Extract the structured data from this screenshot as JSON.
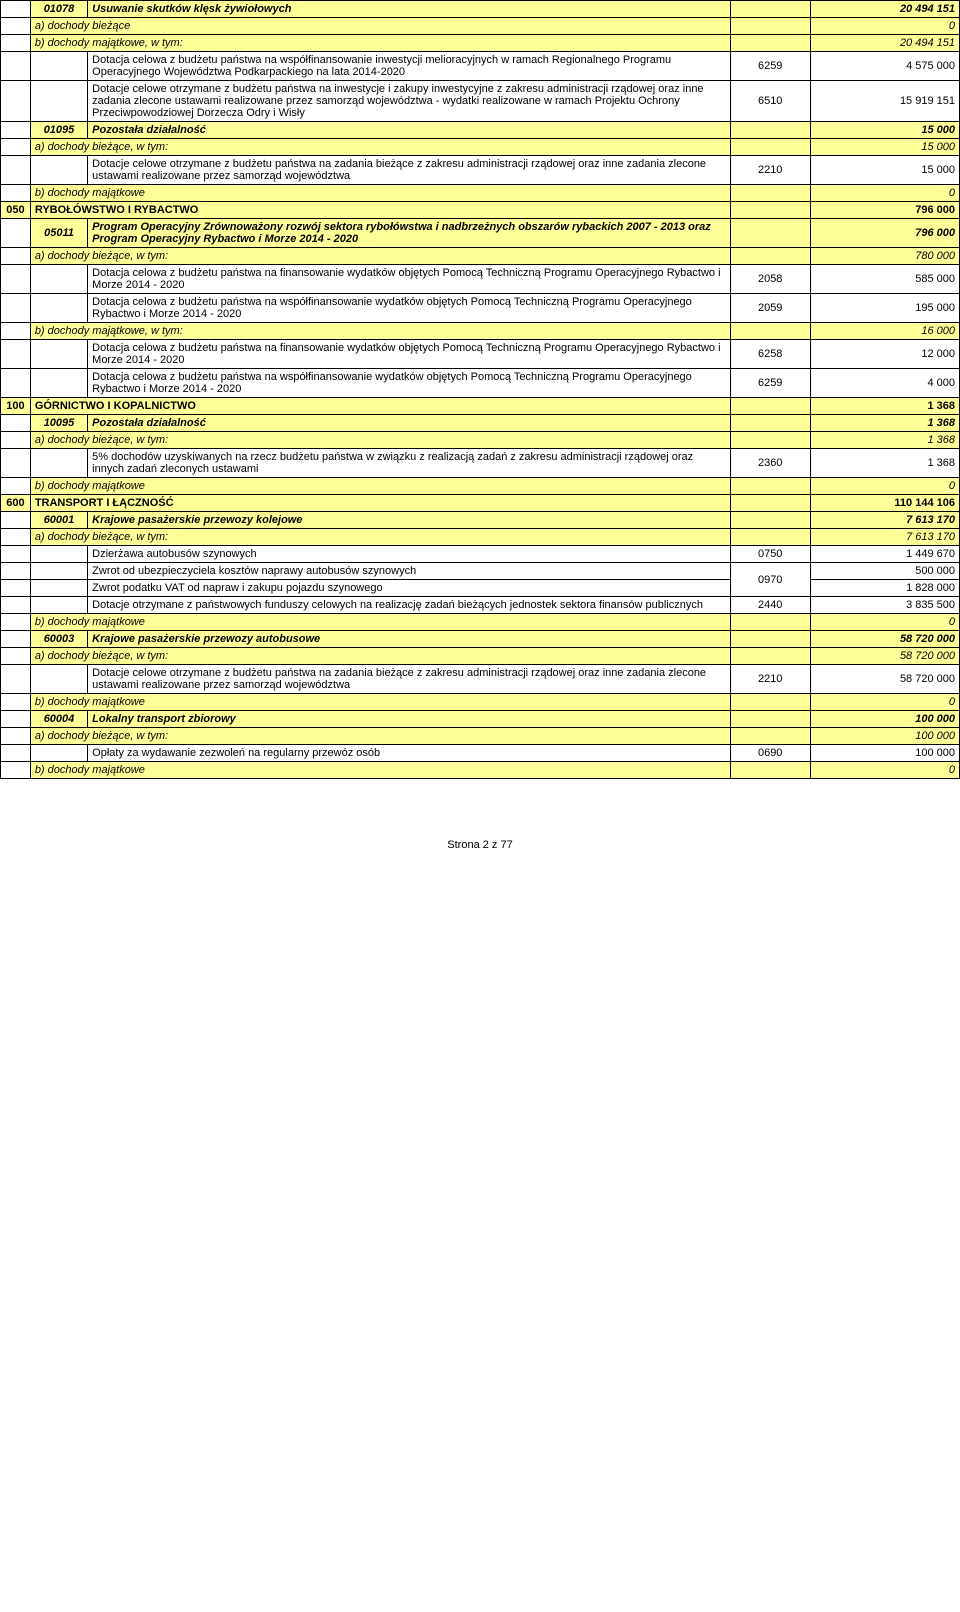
{
  "rows": [
    {
      "type": "head",
      "code": "01078",
      "desc": "Usuwanie skutków klęsk żywiołowych",
      "amt": "20 494 151"
    },
    {
      "type": "sub",
      "desc": "a) dochody bieżące",
      "amt": "0"
    },
    {
      "type": "sub",
      "desc": "b) dochody majątkowe, w tym:",
      "amt": "20 494 151"
    },
    {
      "type": "item",
      "desc": "Dotacja celowa z budżetu państwa na współfinansowanie inwestycji melioracyjnych w ramach Regionalnego Programu Operacyjnego Województwa Podkarpackiego na lata 2014-2020",
      "num": "6259",
      "amt": "4 575 000"
    },
    {
      "type": "item",
      "desc": "Dotacje celowe otrzymane z budżetu państwa na inwestycje i zakupy inwestycyjne z zakresu administracji rządowej oraz inne zadania zlecone ustawami realizowane przez samorząd województwa - wydatki realizowane w ramach Projektu Ochrony Przeciwpowodziowej Dorzecza Odry i Wisły",
      "num": "6510",
      "amt": "15 919 151"
    },
    {
      "type": "head",
      "code": "01095",
      "desc": "Pozostała działalność",
      "amt": "15 000"
    },
    {
      "type": "sub",
      "desc": "a) dochody bieżące, w tym:",
      "amt": "15 000"
    },
    {
      "type": "item",
      "desc": "Dotacje celowe otrzymane z budżetu państwa na zadania bieżące z zakresu administracji rządowej oraz inne zadania zlecone ustawami realizowane przez samorząd województwa",
      "num": "2210",
      "amt": "15 000"
    },
    {
      "type": "sub",
      "desc": "b) dochody majątkowe",
      "amt": "0"
    },
    {
      "type": "section",
      "code": "050",
      "desc": "RYBOŁÓWSTWO I RYBACTWO",
      "amt": "796 000"
    },
    {
      "type": "head",
      "code": "05011",
      "desc": "Program Operacyjny Zrównoważony rozwój sektora rybołówstwa i nadbrzeżnych obszarów rybackich 2007 - 2013 oraz Program Operacyjny Rybactwo i Morze 2014 - 2020",
      "amt": "796 000"
    },
    {
      "type": "sub",
      "desc": "a) dochody bieżące, w tym:",
      "amt": "780 000"
    },
    {
      "type": "item",
      "desc": "Dotacja celowa z budżetu państwa na finansowanie wydatków objętych Pomocą Techniczną Programu Operacyjnego Rybactwo i Morze 2014 - 2020",
      "num": "2058",
      "amt": "585 000"
    },
    {
      "type": "item",
      "desc": "Dotacja celowa z budżetu państwa na współfinansowanie wydatków objętych Pomocą Techniczną Programu Operacyjnego Rybactwo i Morze 2014 - 2020",
      "num": "2059",
      "amt": "195 000"
    },
    {
      "type": "sub",
      "desc": "b) dochody majątkowe, w tym:",
      "amt": "16 000"
    },
    {
      "type": "item",
      "desc": "Dotacja celowa z budżetu państwa na finansowanie wydatków objętych Pomocą Techniczną Programu Operacyjnego Rybactwo i Morze 2014 - 2020",
      "num": "6258",
      "amt": "12 000"
    },
    {
      "type": "item",
      "desc": "Dotacja celowa z budżetu państwa na współfinansowanie wydatków objętych Pomocą Techniczną Programu Operacyjnego Rybactwo i Morze 2014 - 2020",
      "num": "6259",
      "amt": "4 000"
    },
    {
      "type": "section",
      "code": "100",
      "desc": "GÓRNICTWO I KOPALNICTWO",
      "amt": "1 368"
    },
    {
      "type": "head",
      "code": "10095",
      "desc": "Pozostała działalność",
      "amt": "1 368"
    },
    {
      "type": "sub",
      "desc": "a) dochody bieżące, w tym:",
      "amt": "1 368"
    },
    {
      "type": "item",
      "desc": "5% dochodów uzyskiwanych na rzecz budżetu państwa w związku z realizacją zadań z zakresu administracji rządowej oraz innych zadań zleconych ustawami",
      "num": "2360",
      "amt": "1 368"
    },
    {
      "type": "sub",
      "desc": "b) dochody majątkowe",
      "amt": "0"
    },
    {
      "type": "section",
      "code": "600",
      "desc": "TRANSPORT I ŁĄCZNOŚĆ",
      "amt": "110 144 106"
    },
    {
      "type": "head",
      "code": "60001",
      "desc": "Krajowe pasażerskie przewozy kolejowe",
      "amt": "7 613 170"
    },
    {
      "type": "sub",
      "desc": "a) dochody bieżące, w tym:",
      "amt": "7 613 170"
    },
    {
      "type": "item",
      "desc": "Dzierżawa autobusów szynowych",
      "num": "0750",
      "amt": "1 449 670"
    },
    {
      "type": "item2",
      "desc": "Zwrot od ubezpieczyciela kosztów naprawy autobusów szynowych",
      "num": "0970",
      "amt": "500 000",
      "rowspan": 2
    },
    {
      "type": "item2b",
      "desc": "Zwrot podatku VAT od napraw i zakupu pojazdu szynowego",
      "amt": "1 828 000"
    },
    {
      "type": "item",
      "desc": "Dotacje otrzymane z państwowych funduszy celowych na realizację zadań bieżących jednostek sektora finansów publicznych",
      "num": "2440",
      "amt": "3 835 500"
    },
    {
      "type": "sub",
      "desc": "b) dochody majątkowe",
      "amt": "0"
    },
    {
      "type": "head",
      "code": "60003",
      "desc": "Krajowe pasażerskie przewozy autobusowe",
      "amt": "58 720 000"
    },
    {
      "type": "sub",
      "desc": "a) dochody bieżące, w tym:",
      "amt": "58 720 000"
    },
    {
      "type": "item",
      "desc": "Dotacje celowe otrzymane z budżetu państwa na zadania bieżące z zakresu administracji rządowej oraz inne zadania zlecone ustawami realizowane przez samorząd województwa",
      "num": "2210",
      "amt": "58 720 000"
    },
    {
      "type": "sub",
      "desc": "b) dochody majątkowe",
      "amt": "0"
    },
    {
      "type": "head",
      "code": "60004",
      "desc": "Lokalny transport zbiorowy",
      "amt": "100 000"
    },
    {
      "type": "sub",
      "desc": "a) dochody bieżące, w tym:",
      "amt": "100 000"
    },
    {
      "type": "item",
      "desc": "Opłaty za wydawanie zezwoleń na regularny przewóz osób",
      "num": "0690",
      "amt": "100 000"
    },
    {
      "type": "sub",
      "desc": "b) dochody majątkowe",
      "amt": "0"
    }
  ],
  "footer": "Strona 2 z 77",
  "colors": {
    "yellow": "#ffff99",
    "border": "#000000",
    "bg": "#ffffff"
  }
}
